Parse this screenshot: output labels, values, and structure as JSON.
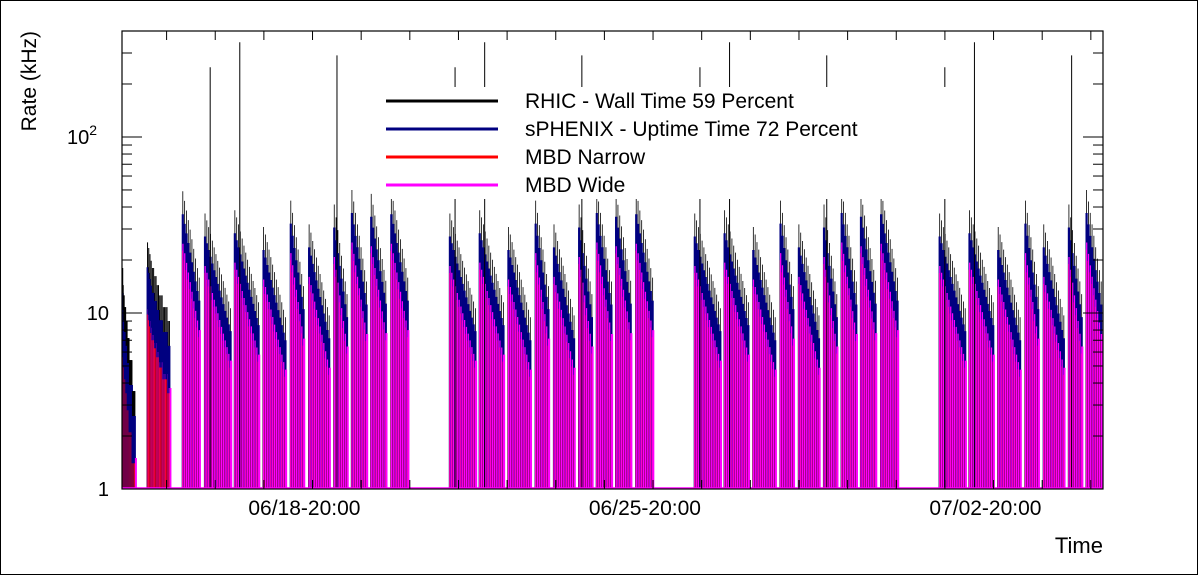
{
  "chart_data": {
    "type": "line",
    "title": "",
    "xlabel": "Time",
    "ylabel": "Rate (kHz)",
    "y_scale": "log",
    "ylim": [
      1,
      400
    ],
    "x_range": [
      "06/15-02:00",
      "07/05-06:00"
    ],
    "x_ticks": [
      "06/18-20:00",
      "06/25-20:00",
      "07/02-20:00"
    ],
    "y_ticks": [
      {
        "value": 1,
        "label": "1"
      },
      {
        "value": 10,
        "label": "10"
      },
      {
        "value": 100,
        "label": "10",
        "sup": "2"
      }
    ],
    "grid": false,
    "legend_position": "top-center",
    "series": [
      {
        "name": "RHIC - Wall Time 59 Percent",
        "color": "#000000"
      },
      {
        "name": "sPHENIX - Uptime Time 72 Percent",
        "color": "#000080"
      },
      {
        "name": "MBD Narrow",
        "color": "#ff0000"
      },
      {
        "name": "MBD Wide",
        "color": "#ff00ff"
      }
    ],
    "fills": [
      {
        "start": "06/15-02:00",
        "peak": 30,
        "decay": 0.55,
        "spikes": [
          [
            0.03,
            10
          ],
          [
            0.05,
            8
          ],
          [
            0.07,
            7
          ],
          [
            0.09,
            7
          ],
          [
            0.11,
            6
          ],
          [
            0.13,
            6
          ],
          [
            0.15,
            6
          ],
          [
            0.17,
            5
          ],
          [
            0.19,
            5
          ],
          [
            0.21,
            5
          ],
          [
            0.23,
            4
          ],
          [
            0.25,
            4
          ],
          [
            0.27,
            4
          ],
          [
            0.29,
            4
          ],
          [
            0.31,
            3
          ],
          [
            0.33,
            3
          ],
          [
            0.35,
            3
          ],
          [
            0.37,
            3
          ],
          [
            0.39,
            3
          ],
          [
            0.41,
            3
          ],
          [
            0.43,
            2
          ],
          [
            0.45,
            2
          ],
          [
            0.47,
            2
          ],
          [
            0.49,
            2
          ],
          [
            0.51,
            2
          ],
          [
            0.53,
            2
          ]
        ]
      },
      {
        "start": "06/15-14:00",
        "peak": 16,
        "decay": 0.45,
        "spikes": [
          [
            0.05,
            14
          ],
          [
            0.1,
            13
          ],
          [
            0.15,
            12
          ],
          [
            0.2,
            11
          ],
          [
            0.25,
            10
          ],
          [
            0.3,
            10
          ],
          [
            0.35,
            9
          ],
          [
            0.4,
            9
          ],
          [
            0.45,
            8
          ],
          [
            0.5,
            8
          ],
          [
            0.55,
            7
          ],
          [
            0.6,
            7
          ],
          [
            0.65,
            7
          ],
          [
            0.7,
            6
          ],
          [
            0.75,
            6
          ],
          [
            0.8,
            6
          ],
          [
            0.85,
            6
          ],
          [
            0.9,
            5
          ],
          [
            0.95,
            5
          ]
        ]
      }
    ]
  }
}
